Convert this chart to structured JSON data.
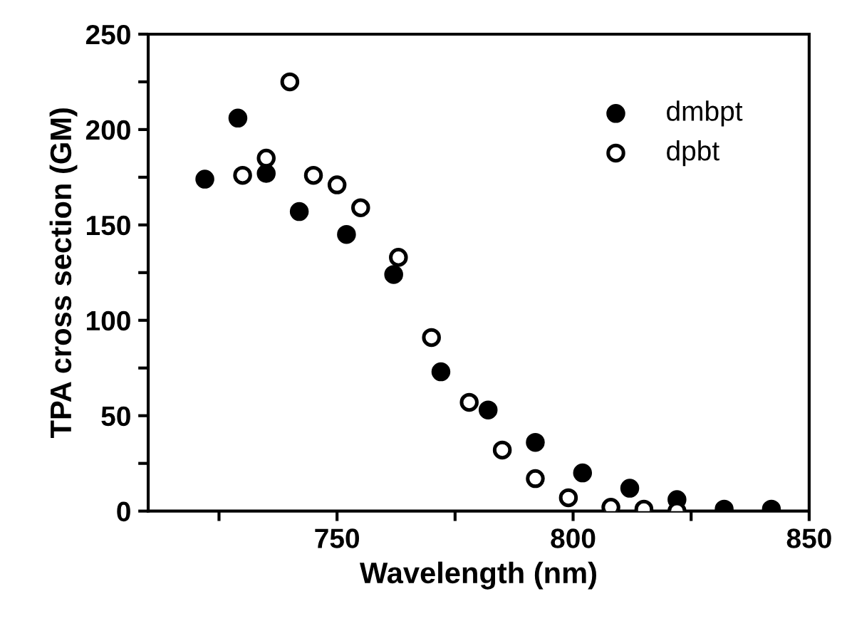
{
  "chart_data": {
    "type": "scatter",
    "xlabel": "Wavelength (nm)",
    "ylabel": "TPA cross section (GM)",
    "xlim": [
      710,
      850
    ],
    "ylim": [
      0,
      250
    ],
    "xticks": [
      {
        "value": 725,
        "label": null
      },
      750,
      {
        "value": 775,
        "label": null
      },
      800,
      {
        "value": 825,
        "label": null
      },
      850
    ],
    "yticks": [
      0,
      {
        "value": 25,
        "label": null
      },
      50,
      {
        "value": 75,
        "label": null
      },
      100,
      {
        "value": 125,
        "label": null
      },
      150,
      {
        "value": 175,
        "label": null
      },
      200,
      {
        "value": 225,
        "label": null
      },
      250
    ],
    "legend": "top right",
    "grid": false,
    "marker": "circle",
    "series": [
      {
        "name": "dmbpt",
        "color": "#000000",
        "x": [
          722,
          729,
          735,
          742,
          752,
          762,
          772,
          782,
          792,
          802,
          812,
          822,
          832,
          842
        ],
        "values": [
          174,
          206,
          177,
          157,
          145,
          124,
          73,
          53,
          36,
          20,
          12,
          6,
          1,
          1
        ]
      },
      {
        "name": "dpbt",
        "color": "#ffffff",
        "x": [
          730,
          735,
          740,
          745,
          750,
          755,
          763,
          770,
          778,
          785,
          792,
          799,
          808,
          815,
          822
        ],
        "values": [
          176,
          185,
          225,
          176,
          171,
          159,
          133,
          91,
          57,
          32,
          17,
          7,
          2,
          1,
          0
        ]
      }
    ]
  }
}
